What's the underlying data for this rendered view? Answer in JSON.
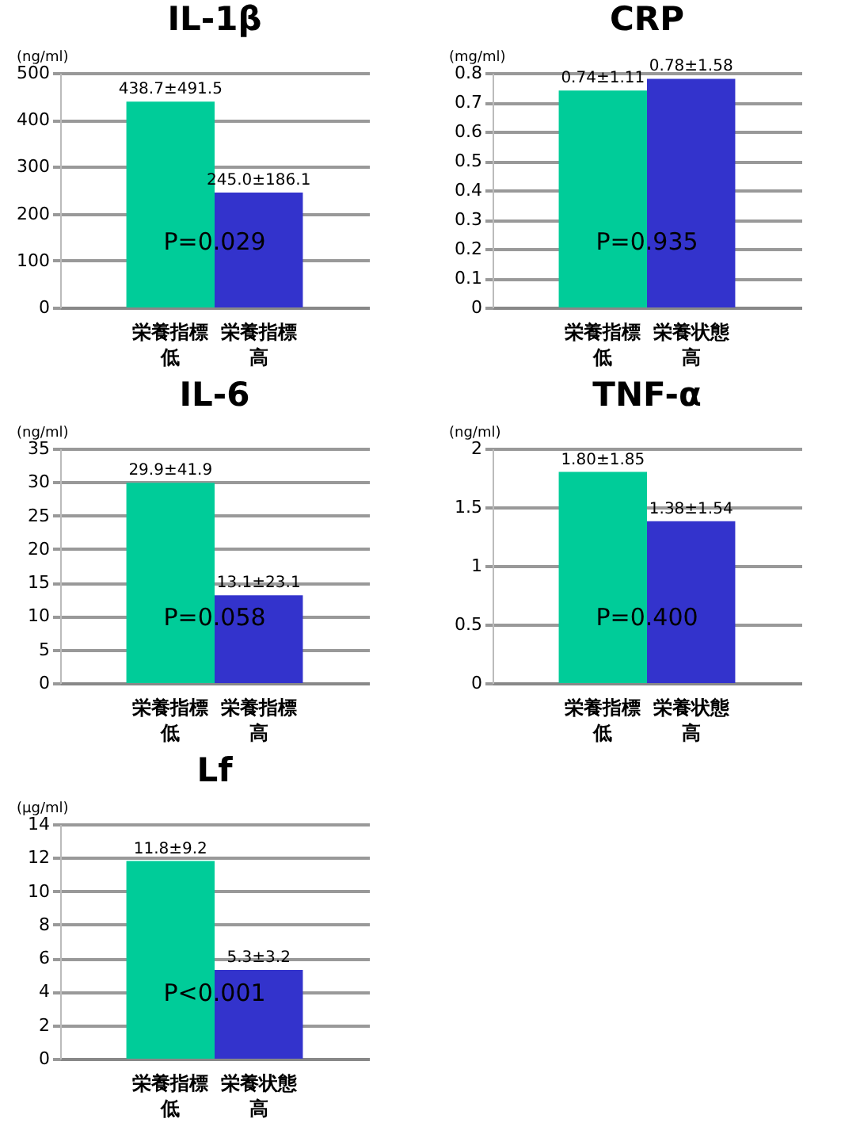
{
  "chart_data": [
    {
      "type": "bar",
      "title": "IL-1β",
      "ylabel": "(ng/ml)",
      "categories": [
        "栄養指標低",
        "栄養指標高"
      ],
      "values": [
        438.7,
        245.0
      ],
      "colors": [
        "#00cc99",
        "#3333cc"
      ],
      "value_labels": [
        "438.7±491.5",
        "245.0±186.1"
      ],
      "ylim": [
        0,
        500
      ],
      "yticks": [
        0,
        100,
        200,
        300,
        400,
        500
      ],
      "grid": "y",
      "annotations": [
        "P=0.029"
      ]
    },
    {
      "type": "bar",
      "title": "CRP",
      "ylabel": "(mg/ml)",
      "categories": [
        "栄養指標低",
        "栄養状態高"
      ],
      "values": [
        0.74,
        0.78
      ],
      "colors": [
        "#00cc99",
        "#3333cc"
      ],
      "value_labels": [
        "0.74±1.11",
        "0.78±1.58"
      ],
      "ylim": [
        0,
        0.8
      ],
      "yticks": [
        0,
        0.1,
        0.2,
        0.3,
        0.4,
        0.5,
        0.6,
        0.7,
        0.8
      ],
      "grid": "y",
      "annotations": [
        "P=0.935"
      ]
    },
    {
      "type": "bar",
      "title": "IL-6",
      "ylabel": "(ng/ml)",
      "categories": [
        "栄養指標低",
        "栄養指標高"
      ],
      "values": [
        29.9,
        13.1
      ],
      "colors": [
        "#00cc99",
        "#3333cc"
      ],
      "value_labels": [
        "29.9±41.9",
        "13.1±23.1"
      ],
      "ylim": [
        0,
        35
      ],
      "yticks": [
        0,
        5,
        10,
        15,
        20,
        25,
        30,
        35
      ],
      "grid": "y",
      "annotations": [
        "P=0.058"
      ]
    },
    {
      "type": "bar",
      "title": "TNF-α",
      "ylabel": "(ng/ml)",
      "categories": [
        "栄養指標低",
        "栄養状態高"
      ],
      "values": [
        1.8,
        1.38
      ],
      "colors": [
        "#00cc99",
        "#3333cc"
      ],
      "value_labels": [
        "1.80±1.85",
        "1.38±1.54"
      ],
      "ylim": [
        0,
        2
      ],
      "yticks": [
        0,
        0.5,
        1,
        1.5,
        2
      ],
      "grid": "y",
      "annotations": [
        "P=0.400"
      ]
    },
    {
      "type": "bar",
      "title": "Lf",
      "ylabel": "(μg/ml)",
      "categories": [
        "栄養指標低",
        "栄養状態高"
      ],
      "values": [
        11.8,
        5.3
      ],
      "colors": [
        "#00cc99",
        "#3333cc"
      ],
      "value_labels": [
        "11.8±9.2",
        "5.3±3.2"
      ],
      "ylim": [
        0,
        14
      ],
      "yticks": [
        0,
        2,
        4,
        6,
        8,
        10,
        12,
        14
      ],
      "grid": "y",
      "annotations": [
        "P<0.001"
      ]
    }
  ]
}
